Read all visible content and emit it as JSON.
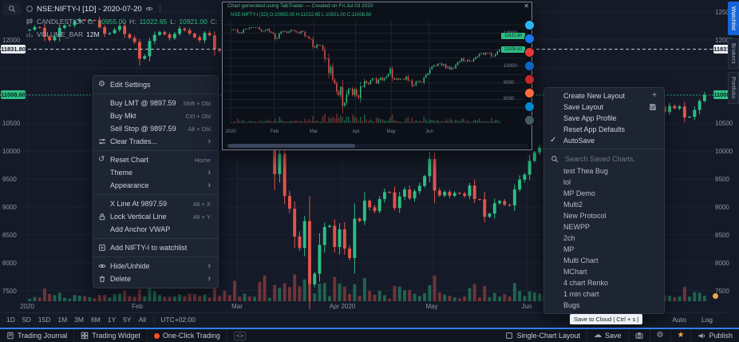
{
  "legend": {
    "symbol": "NSE:NIFTY-I [1D] - 2020-07-20",
    "series": "CANDLESTICK",
    "o_label": "O:",
    "o": "10955.00",
    "h_label": "H:",
    "h": "11022.65",
    "l_label": "L:",
    "l": "10921.00",
    "c_label": "C:",
    "c": "11008.6",
    "volume_label": "VOLUME_BAR",
    "volume_value": "12M"
  },
  "context_menu": {
    "items": [
      {
        "label": "Edit Settings",
        "icon": "gear"
      },
      {
        "divider": true
      },
      {
        "label": "Buy LMT @ 9897.59",
        "shortcut": "Shift + Dbl"
      },
      {
        "label": "Buy Mkt",
        "shortcut": "Ctrl + Dbl"
      },
      {
        "label": "Sell Stop @ 9897.59",
        "shortcut": "Alt + Dbl"
      },
      {
        "label": "Clear Trades...",
        "icon": "sliders",
        "arrow": true
      },
      {
        "divider": true
      },
      {
        "label": "Reset Chart",
        "icon": "reset",
        "shortcut": "Home"
      },
      {
        "label": "Theme",
        "arrow": true
      },
      {
        "label": "Appearance",
        "arrow": true
      },
      {
        "divider": true
      },
      {
        "label": "X Line At 9897.59",
        "shortcut": "Alt + X"
      },
      {
        "label": "Lock Vertical Line",
        "icon": "lock",
        "shortcut": "Alt + Y"
      },
      {
        "label": "Add Anchor VWAP"
      },
      {
        "divider": true
      },
      {
        "label": "Add NIFTY-I to watchlist",
        "icon": "watch"
      },
      {
        "divider": true
      },
      {
        "label": "Hide/Unhide",
        "icon": "eye",
        "arrow": true
      },
      {
        "label": "Delete",
        "icon": "trash",
        "arrow": true
      }
    ]
  },
  "layout_menu": {
    "items": [
      {
        "label": "Create New Layout",
        "right_icon": "plus"
      },
      {
        "label": "Save Layout",
        "right_icon": "savefl"
      },
      {
        "label": "Save App Profile"
      },
      {
        "label": "Reset App Defaults"
      },
      {
        "label": "AutoSave",
        "left_icon": "check"
      }
    ],
    "search_placeholder": "Search Saved Charts.",
    "saved_charts": [
      "test Thea Bug",
      "lol",
      "MP Demo",
      "Multi2",
      "New Protocol",
      "NEWPP",
      "2ch",
      "MP",
      "Multi Chart",
      "MChart",
      "4 chart Renko",
      "1 min chart",
      "Bugs"
    ]
  },
  "popup": {
    "header": "Chart generated using TabTrader — Created on Fri Jul 03 2020",
    "legend": "NSE:NIFTY-I [1D] O:10955.00 H:11022.65 L:10921.00 C:11008.60",
    "close_glyph": "✕",
    "share_colors": [
      "#29b6f6",
      "#1877f2",
      "#e53935",
      "#0a66c2",
      "#c62828",
      "#ff6d3f",
      "#0288d1",
      "#455a64"
    ],
    "scale_ticks": [
      12000,
      11000,
      10000,
      9000,
      8000
    ],
    "scale_marks": [
      {
        "price": 11831.8,
        "label": "11831.80"
      },
      {
        "price": 11008.6,
        "label": "11008.60"
      }
    ]
  },
  "side_tabs": [
    {
      "label": "Watchlist",
      "active": true
    },
    {
      "label": "Brokers",
      "active": false
    },
    {
      "label": "Portfolio",
      "active": false
    }
  ],
  "timeframe_bar": {
    "ranges": [
      "1D",
      "5D",
      "15D",
      "1M",
      "3M",
      "6M",
      "1Y",
      "5Y",
      "All"
    ],
    "timezone": "UTC+02:00",
    "right_items": [
      "Auto",
      "Log"
    ]
  },
  "bottom_bar": {
    "left": [
      {
        "name": "trading-journal-button",
        "icon": "journal",
        "label": "Trading Journal"
      },
      {
        "name": "trading-widget-button",
        "icon": "widget",
        "label": "Trading Widget"
      },
      {
        "name": "one-click-trading-button",
        "icon": "oneclick",
        "label": "One-Click Trading"
      },
      {
        "name": "code-button",
        "icon": "code",
        "label": ""
      }
    ],
    "right": [
      {
        "name": "single-chart-layout-button",
        "icon": "grid1",
        "label": "Single-Chart Layout"
      },
      {
        "name": "save-button",
        "icon": "cloud",
        "label": "Save"
      },
      {
        "name": "camera-button",
        "icon": "camera",
        "label": ""
      },
      {
        "name": "settings-button",
        "icon": "gear",
        "label": ""
      },
      {
        "name": "star-button",
        "icon": "star",
        "label": ""
      },
      {
        "name": "publish-button",
        "icon": "mega",
        "label": "Publish"
      }
    ]
  },
  "tooltip": {
    "text": "Save to Cloud | Ctrl + s |"
  },
  "chart_data": {
    "type": "candlestick",
    "symbol": "NSE:NIFTY-I",
    "interval": "1D",
    "last_price": 11008.6,
    "colors": {
      "up": "#2ebd85",
      "down": "#e1544b"
    },
    "closes": [
      12182,
      12227,
      12217,
      12053,
      11993,
      12052,
      12216,
      12256,
      12262,
      12329,
      12362,
      12343,
      12355,
      12352,
      12224,
      12106,
      12119,
      12180,
      12248,
      12101,
      12035,
      11962,
      11662,
      11707,
      11979,
      12089,
      12138,
      12098,
      12031,
      12108,
      12201,
      12174,
      12113,
      12046,
      11992,
      12125,
      12081,
      11829,
      11798,
      11678,
      11633,
      11202,
      11133,
      11303,
      11251,
      11269,
      10989,
      10451,
      10458,
      9590,
      9955,
      9197,
      8967,
      8469,
      8263,
      8745,
      7610,
      7801,
      8318,
      8641,
      8660,
      8281,
      8598,
      8254,
      8084,
      8792,
      8749,
      9112,
      8994,
      8925,
      9142,
      9267,
      9262,
      8981,
      9187,
      9313,
      9154,
      9282,
      9380,
      9553,
      9860,
      9293,
      9206,
      9270,
      9199,
      9251,
      9239,
      9197,
      9384,
      9142,
      9137,
      8823,
      8879,
      9066,
      9106,
      9039,
      9029,
      9314,
      9490,
      9580,
      9826,
      9979,
      10061,
      10029,
      10142,
      10167,
      10046,
      10116,
      9902,
      9972,
      9813,
      9914,
      9881,
      10091,
      10244,
      10311,
      10471,
      10305,
      10289,
      10383,
      10312,
      10302,
      10430,
      10552,
      10607,
      10763,
      10799,
      10705,
      10813,
      10768,
      10802,
      10607,
      10618,
      10740,
      10901,
      11008.6
    ],
    "month_ticks": [
      {
        "label": "2020",
        "i": 0
      },
      {
        "label": "Feb",
        "i": 22
      },
      {
        "label": "Mar",
        "i": 42
      },
      {
        "label": "Apr 2020",
        "i": 63
      },
      {
        "label": "May",
        "i": 81
      },
      {
        "label": "Jun",
        "i": 100
      }
    ],
    "grid_prices": [
      7500,
      8000,
      8500,
      9000,
      9500,
      10000,
      10500,
      11000,
      11500,
      12000,
      12500
    ],
    "price_axis": {
      "ticks": [
        12500,
        12000,
        10500,
        10000,
        9500,
        9000,
        8500,
        8000,
        7500
      ],
      "special": [
        {
          "price": 11831.8,
          "label": "11831.80",
          "style": "white"
        },
        {
          "price": 11008.6,
          "label": "11008.60",
          "style": "green"
        }
      ]
    },
    "hlines": [
      {
        "price": 11831.8,
        "color": "#c9cfda",
        "dash": "4,3"
      },
      {
        "price": 11008.6,
        "color": "#2ebd85",
        "dash": "1.5,2.5"
      }
    ]
  }
}
